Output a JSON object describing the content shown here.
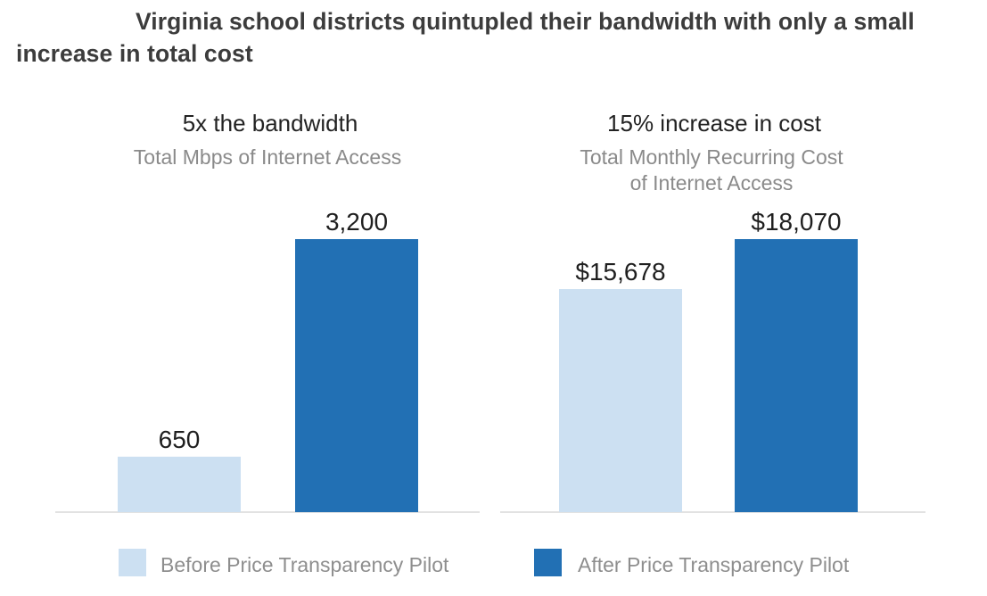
{
  "title": "Virginia school districts quintupled their bandwidth with only a small increase in total cost",
  "colors": {
    "before": "#cce0f2",
    "after": "#2270b4",
    "baseline": "#d9d9d9"
  },
  "legend": [
    {
      "label": "Before Price Transparency Pilot",
      "color": "#cce0f2"
    },
    {
      "label": "After Price Transparency Pilot",
      "color": "#2270b4"
    }
  ],
  "chart_data": [
    {
      "type": "bar",
      "title": "5x the bandwidth",
      "subtitle": [
        "Total Mbps of Internet Access"
      ],
      "categories": [
        "Before Price Transparency Pilot",
        "After Price Transparency Pilot"
      ],
      "values": [
        650,
        3200
      ],
      "value_labels": [
        "650",
        "3,200"
      ],
      "ylim": [
        0,
        3200
      ]
    },
    {
      "type": "bar",
      "title": "15% increase in cost",
      "subtitle": [
        "Total Monthly Recurring Cost",
        "of Internet Access"
      ],
      "categories": [
        "Before Price Transparency Pilot",
        "After Price Transparency Pilot"
      ],
      "values": [
        15678,
        18070
      ],
      "value_labels": [
        "$15,678",
        "$18,070"
      ],
      "ylim": [
        5000,
        18070
      ]
    }
  ]
}
